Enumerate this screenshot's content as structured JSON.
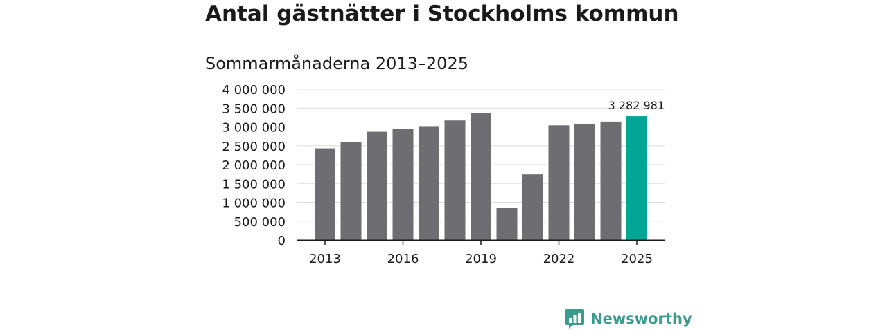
{
  "header": {
    "title": "Antal gästnätter i Stockholms kommun",
    "subtitle": "Sommarmånaderna 2013–2025"
  },
  "chart_data": {
    "type": "bar",
    "title": "Antal gästnätter i Stockholms kommun",
    "subtitle": "Sommarmånaderna 2013–2025",
    "categories": [
      "2013",
      "2014",
      "2015",
      "2016",
      "2017",
      "2018",
      "2019",
      "2020",
      "2021",
      "2022",
      "2023",
      "2024",
      "2025"
    ],
    "values": [
      2430000,
      2600000,
      2870000,
      2950000,
      3020000,
      3170000,
      3360000,
      850000,
      1740000,
      3040000,
      3070000,
      3140000,
      3282981
    ],
    "ylim": [
      0,
      4000000
    ],
    "yticks": [
      0,
      500000,
      1000000,
      1500000,
      2000000,
      2500000,
      3000000,
      3500000,
      4000000
    ],
    "ytick_labels": [
      "0",
      "500 000",
      "1 000 000",
      "1 500 000",
      "2 000 000",
      "2 500 000",
      "3 000 000",
      "3 500 000",
      "4 000 000"
    ],
    "xtick_labels": [
      "2013",
      "2016",
      "2019",
      "2022",
      "2025"
    ],
    "highlight_label": "3 282 981",
    "highlight_index": 12,
    "grid": true,
    "colors": {
      "bar": "#6e6d72",
      "highlight": "#00a594",
      "grid": "#dddddd",
      "axis": "#1a1a1a"
    }
  },
  "branding": {
    "logo_text": "Newsworthy",
    "icon": "bar-chart-speech-bubble-icon",
    "color": "#3d9a8e"
  }
}
